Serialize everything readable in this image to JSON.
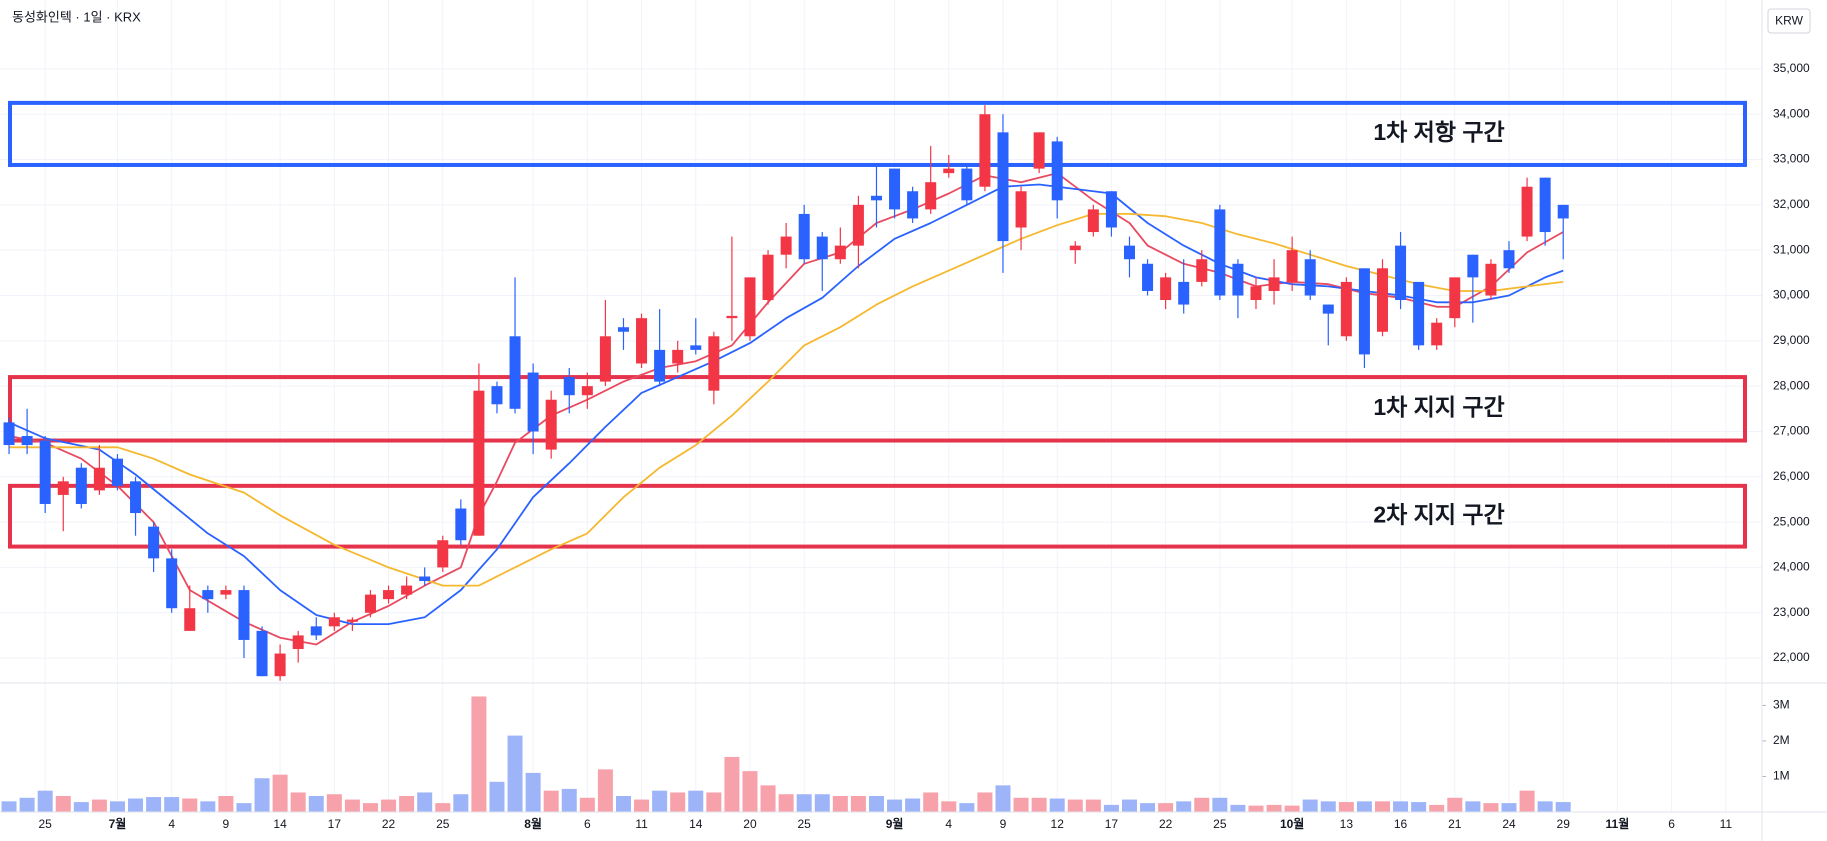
{
  "header": {
    "title": "동성화인텍 · 1일 · KRX",
    "currency": "KRW"
  },
  "chart_data": [
    {
      "type": "candlestick",
      "grid": true,
      "up_color": "#f23645",
      "down_color": "#2962ff",
      "xlim": [
        -0.5,
        97
      ],
      "xticks": [
        {
          "value": 2,
          "label": "25"
        },
        {
          "value": 6,
          "label": "7월"
        },
        {
          "value": 9,
          "label": "4"
        },
        {
          "value": 12,
          "label": "9"
        },
        {
          "value": 15,
          "label": "14"
        },
        {
          "value": 18,
          "label": "17"
        },
        {
          "value": 21,
          "label": "22"
        },
        {
          "value": 24,
          "label": "25"
        },
        {
          "value": 29,
          "label": "8월"
        },
        {
          "value": 32,
          "label": "6"
        },
        {
          "value": 35,
          "label": "11"
        },
        {
          "value": 38,
          "label": "14"
        },
        {
          "value": 41,
          "label": "20"
        },
        {
          "value": 44,
          "label": "25"
        },
        {
          "value": 49,
          "label": "9월"
        },
        {
          "value": 52,
          "label": "4"
        },
        {
          "value": 55,
          "label": "9"
        },
        {
          "value": 58,
          "label": "12"
        },
        {
          "value": 61,
          "label": "17"
        },
        {
          "value": 64,
          "label": "22"
        },
        {
          "value": 67,
          "label": "25"
        },
        {
          "value": 71,
          "label": "10월"
        },
        {
          "value": 74,
          "label": "13"
        },
        {
          "value": 77,
          "label": "16"
        },
        {
          "value": 80,
          "label": "21"
        },
        {
          "value": 83,
          "label": "24"
        },
        {
          "value": 86,
          "label": "29"
        },
        {
          "value": 89,
          "label": "11월"
        },
        {
          "value": 92,
          "label": "6"
        },
        {
          "value": 95,
          "label": "11"
        }
      ],
      "ylim": [
        21450,
        36520
      ],
      "yticks": [
        {
          "value": 22000,
          "label": "22,000"
        },
        {
          "value": 23000,
          "label": "23,000"
        },
        {
          "value": 24000,
          "label": "24,000"
        },
        {
          "value": 25000,
          "label": "25,000"
        },
        {
          "value": 26000,
          "label": "26,000"
        },
        {
          "value": 27000,
          "label": "27,000"
        },
        {
          "value": 28000,
          "label": "28,000"
        },
        {
          "value": 29000,
          "label": "29,000"
        },
        {
          "value": 30000,
          "label": "30,000"
        },
        {
          "value": 31000,
          "label": "31,000"
        },
        {
          "value": 32000,
          "label": "32,000"
        },
        {
          "value": 33000,
          "label": "33,000"
        },
        {
          "value": 34000,
          "label": "34,000"
        },
        {
          "value": 35000,
          "label": "35,000"
        }
      ],
      "open": [
        27200,
        26900,
        26800,
        25600,
        26200,
        25700,
        26400,
        25900,
        24900,
        24200,
        22600,
        23500,
        23400,
        23500,
        22600,
        21600,
        22200,
        22700,
        22700,
        22800,
        23000,
        23300,
        23400,
        23800,
        24000,
        25300,
        24700,
        28000,
        29100,
        28300,
        26600,
        28200,
        27800,
        28100,
        29300,
        28500,
        28800,
        28500,
        28900,
        27900,
        29500,
        29100,
        29900,
        30900,
        31800,
        31300,
        30800,
        31100,
        32200,
        32800,
        32300,
        31900,
        32700,
        32800,
        32400,
        33600,
        31500,
        32800,
        33400,
        31000,
        31400,
        32300,
        31100,
        30700,
        29900,
        30300,
        30300,
        31900,
        30700,
        29900,
        30100,
        30300,
        30800,
        29800,
        29100,
        30600,
        29200,
        31100,
        30300,
        28900,
        29500,
        30900,
        30000,
        31000,
        31300,
        32600,
        32000
      ],
      "high": [
        27300,
        27500,
        26900,
        26000,
        26300,
        26700,
        26500,
        26000,
        25000,
        24400,
        23600,
        23600,
        23600,
        23600,
        22700,
        22300,
        22600,
        22900,
        23000,
        22900,
        23500,
        23600,
        23800,
        24000,
        24700,
        25500,
        28500,
        28100,
        30400,
        28500,
        27900,
        28400,
        28300,
        29900,
        29500,
        29600,
        29700,
        29000,
        29500,
        29200,
        31300,
        30400,
        31000,
        31600,
        32000,
        31400,
        31500,
        32200,
        32900,
        32800,
        32400,
        33300,
        33100,
        32900,
        34200,
        34000,
        32400,
        33600,
        33500,
        31200,
        32000,
        32300,
        31300,
        30800,
        30500,
        30800,
        31000,
        32000,
        30800,
        30400,
        30800,
        31300,
        31000,
        29800,
        30400,
        30600,
        30800,
        31400,
        30300,
        29500,
        30400,
        30900,
        30800,
        31200,
        32600,
        32600,
        32000
      ],
      "low": [
        26500,
        26500,
        25200,
        24800,
        25300,
        25600,
        25700,
        24700,
        23900,
        23000,
        22600,
        23000,
        23300,
        22000,
        21600,
        21500,
        21900,
        22400,
        22600,
        22600,
        22900,
        23200,
        23300,
        23600,
        23900,
        24500,
        24700,
        27400,
        27400,
        26500,
        26400,
        27400,
        27500,
        28000,
        28800,
        28400,
        28000,
        28300,
        28700,
        27600,
        29000,
        29000,
        29800,
        30600,
        30700,
        30100,
        30700,
        30600,
        31500,
        31700,
        31600,
        31800,
        32600,
        32000,
        32300,
        30500,
        31000,
        32700,
        31700,
        30700,
        31300,
        31300,
        30400,
        30000,
        29700,
        29600,
        30200,
        29900,
        29500,
        29700,
        29800,
        30100,
        29900,
        28900,
        29000,
        28400,
        29100,
        29700,
        28800,
        28800,
        29300,
        29400,
        29900,
        30500,
        31200,
        31100,
        30800
      ],
      "close": [
        26700,
        26700,
        25400,
        25900,
        25400,
        26200,
        25800,
        25200,
        24200,
        23100,
        23100,
        23300,
        23500,
        22400,
        21600,
        22100,
        22500,
        22500,
        22900,
        22850,
        23400,
        23500,
        23600,
        23700,
        24600,
        24600,
        27900,
        27600,
        27500,
        27000,
        27700,
        27800,
        28000,
        29100,
        29200,
        29500,
        28100,
        28800,
        28800,
        29100,
        29550,
        30400,
        30900,
        31300,
        30800,
        30800,
        31100,
        32000,
        32100,
        31900,
        31700,
        32500,
        32800,
        32100,
        34000,
        31200,
        32300,
        33600,
        32100,
        31100,
        31900,
        31500,
        30800,
        30100,
        30400,
        29800,
        30800,
        30000,
        30000,
        30200,
        30400,
        31000,
        30000,
        29600,
        30300,
        28700,
        30600,
        29900,
        28900,
        29400,
        30400,
        30400,
        30700,
        30600,
        32400,
        31400,
        31700
      ],
      "lines": [
        {
          "color": "#e84a5f",
          "x": [
            0,
            2,
            4,
            6,
            8,
            10,
            13,
            15,
            17,
            19,
            21,
            23,
            25,
            26,
            27,
            28,
            30,
            32,
            34,
            36,
            38,
            40,
            42,
            44,
            46,
            48,
            50,
            52,
            54,
            56,
            58,
            59,
            60,
            62,
            63,
            65,
            67,
            69,
            71,
            73,
            75,
            77,
            79,
            80,
            82,
            84,
            86
          ],
          "values": [
            26900,
            26750,
            26400,
            25800,
            25000,
            23500,
            22800,
            22450,
            22300,
            22800,
            23150,
            23600,
            24000,
            25150,
            25900,
            26750,
            27350,
            27700,
            28100,
            28400,
            28550,
            28900,
            29850,
            30700,
            30950,
            31600,
            31900,
            32250,
            32650,
            32500,
            32700,
            32400,
            32100,
            31600,
            31100,
            30700,
            30500,
            30200,
            30300,
            30250,
            30050,
            29950,
            29750,
            29750,
            30200,
            30950,
            31400
          ]
        },
        {
          "color": "#2962ff",
          "x": [
            0,
            2,
            5,
            7,
            9,
            11,
            13,
            15,
            17,
            19,
            21,
            23,
            25,
            27,
            29,
            31,
            33,
            35,
            37,
            39,
            41,
            43,
            45,
            47,
            49,
            51,
            53,
            55,
            57,
            59,
            61,
            63,
            65,
            67,
            69,
            71,
            73,
            75,
            77,
            79,
            81,
            83,
            85,
            86
          ],
          "values": [
            27200,
            26850,
            26600,
            26050,
            25400,
            24750,
            24250,
            23500,
            22950,
            22750,
            22750,
            22900,
            23500,
            24400,
            25550,
            26300,
            27100,
            27850,
            28200,
            28550,
            28950,
            29500,
            29950,
            30650,
            31250,
            31600,
            32000,
            32400,
            32450,
            32350,
            32250,
            31600,
            31100,
            30700,
            30400,
            30250,
            30200,
            30100,
            30000,
            29850,
            29850,
            30000,
            30400,
            30550
          ]
        },
        {
          "color": "#f5b82e",
          "x": [
            0,
            3,
            6,
            8,
            10,
            13,
            15,
            18,
            21,
            24,
            26,
            28,
            30,
            32,
            34,
            36,
            38,
            40,
            42,
            44,
            46,
            48,
            50,
            52,
            54,
            56,
            58,
            60,
            62,
            64,
            66,
            68,
            70,
            72,
            74,
            76,
            78,
            80,
            82,
            84,
            86
          ],
          "values": [
            26650,
            26650,
            26650,
            26400,
            26050,
            25650,
            25150,
            24500,
            24000,
            23600,
            23600,
            24000,
            24400,
            24750,
            25550,
            26200,
            26700,
            27350,
            28100,
            28900,
            29300,
            29800,
            30200,
            30550,
            30900,
            31250,
            31550,
            31800,
            31800,
            31750,
            31600,
            31350,
            31150,
            30900,
            30650,
            30450,
            30250,
            30100,
            30100,
            30200,
            30300
          ]
        }
      ],
      "zones": [
        {
          "label": "1차 저항 구간",
          "range": [
            32880,
            34250
          ],
          "color": "#2962ff"
        },
        {
          "label": "1차 지지 구간",
          "range": [
            26800,
            28200
          ],
          "color": "#e5334b"
        },
        {
          "label": "2차 지지 구간",
          "range": [
            24460,
            25800
          ],
          "color": "#e5334b"
        }
      ]
    },
    {
      "type": "bar",
      "up_color": "#f7a1ab",
      "down_color": "#9db4f9",
      "ylim": [
        0,
        3630000
      ],
      "yticks": [
        {
          "value": 1000000,
          "label": "1M"
        },
        {
          "value": 2000000,
          "label": "2M"
        },
        {
          "value": 3000000,
          "label": "3M"
        }
      ],
      "values": [
        300000,
        400000,
        600000,
        450000,
        280000,
        350000,
        300000,
        380000,
        420000,
        420000,
        380000,
        300000,
        450000,
        250000,
        950000,
        1050000,
        550000,
        450000,
        500000,
        350000,
        250000,
        350000,
        450000,
        550000,
        250000,
        500000,
        3250000,
        850000,
        2150000,
        1100000,
        600000,
        650000,
        400000,
        1200000,
        450000,
        350000,
        600000,
        550000,
        600000,
        550000,
        1550000,
        1150000,
        750000,
        500000,
        500000,
        500000,
        450000,
        450000,
        450000,
        350000,
        380000,
        550000,
        300000,
        250000,
        550000,
        750000,
        400000,
        400000,
        380000,
        350000,
        350000,
        200000,
        350000,
        250000,
        250000,
        300000,
        400000,
        400000,
        200000,
        180000,
        200000,
        180000,
        350000,
        300000,
        280000,
        300000,
        300000,
        300000,
        280000,
        200000,
        400000,
        300000,
        250000,
        250000,
        600000,
        300000,
        280000
      ]
    }
  ]
}
